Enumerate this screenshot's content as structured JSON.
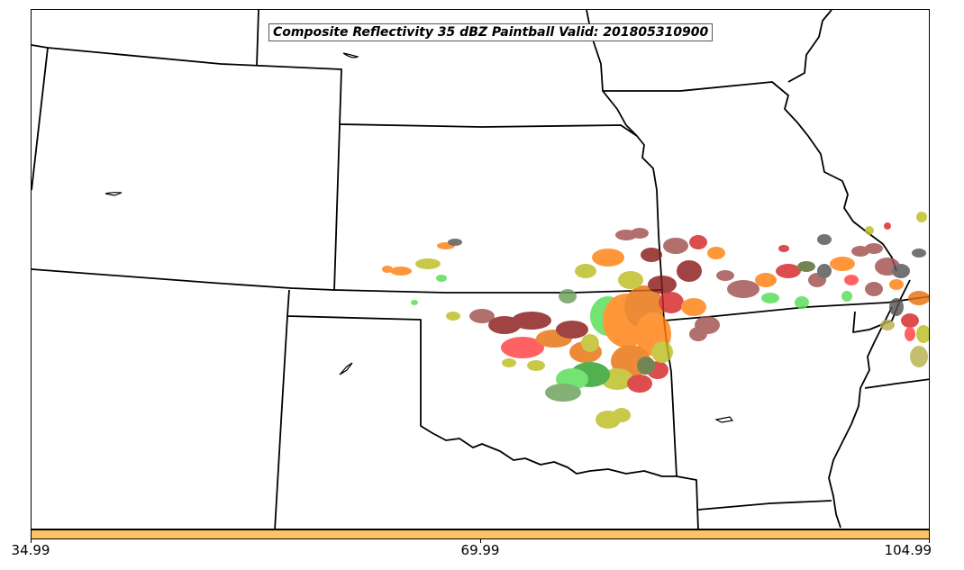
{
  "map": {
    "title": "Composite Reflectivity 35 dBZ Paintball Valid: 201805310900",
    "border_color": "#000000",
    "paintball_colors": [
      "#8b1a1a",
      "#a0504f",
      "#ff7f0e",
      "#e8720c",
      "#d62728",
      "#ff4040",
      "#2ca02c",
      "#55dd55",
      "#bcbd22",
      "#b8b050",
      "#555555",
      "#556b2f",
      "#6a9f58"
    ]
  },
  "colorbar": {
    "color": "#ffc266",
    "ticks": [
      "34.99",
      "69.99",
      "104.99"
    ]
  }
}
